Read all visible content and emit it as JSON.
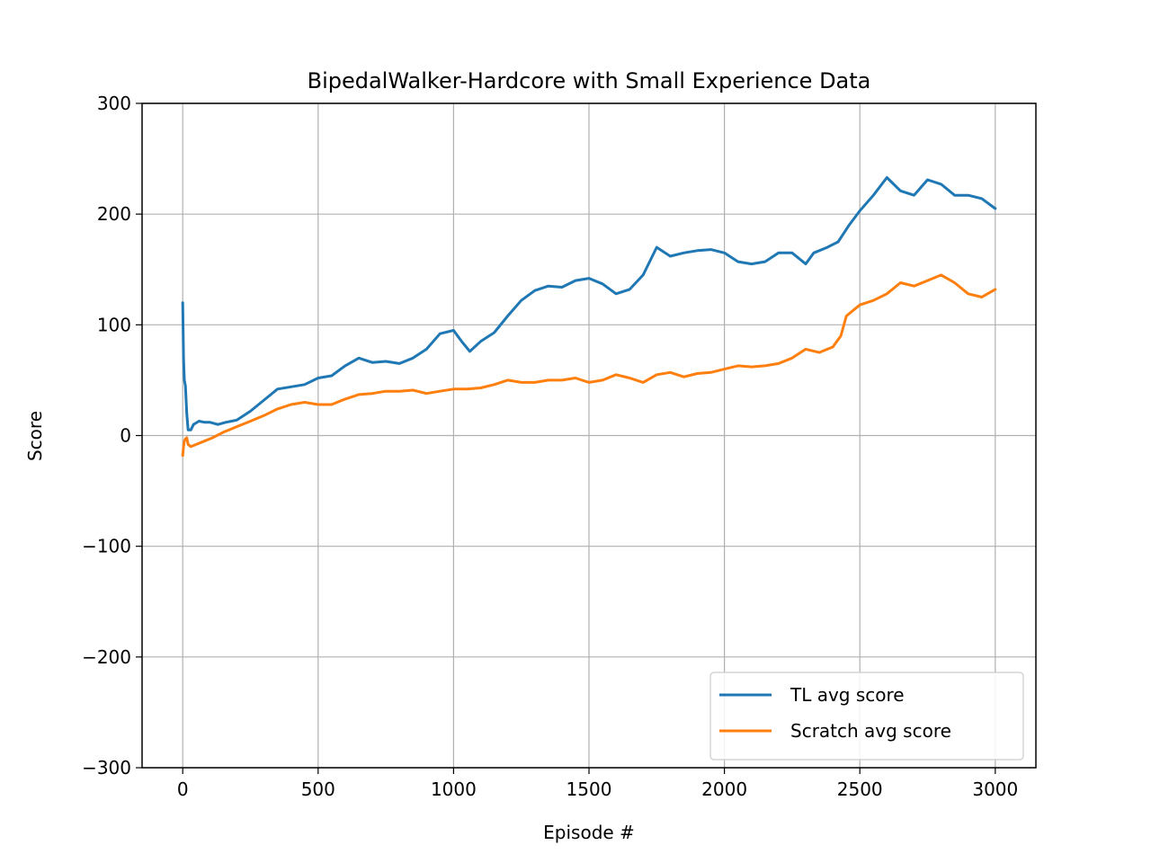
{
  "chart_data": {
    "type": "line",
    "title": "BipedalWalker-Hardcore with Small Experience Data",
    "xlabel": "Episode #",
    "ylabel": "Score",
    "xlim": [
      -150,
      3150
    ],
    "ylim": [
      -300,
      300
    ],
    "xticks": [
      0,
      500,
      1000,
      1500,
      2000,
      2500,
      3000
    ],
    "yticks": [
      -300,
      -200,
      -100,
      0,
      100,
      200,
      300
    ],
    "xtick_labels": [
      "0",
      "500",
      "1000",
      "1500",
      "2000",
      "2500",
      "3000"
    ],
    "ytick_labels": [
      "−300",
      "−200",
      "−100",
      "0",
      "100",
      "200",
      "300"
    ],
    "grid": true,
    "legend_position": "lower-right",
    "series": [
      {
        "name": "TL avg score",
        "color": "#1f77b4",
        "x": [
          0,
          3,
          6,
          10,
          15,
          20,
          30,
          40,
          60,
          80,
          100,
          130,
          160,
          200,
          250,
          300,
          350,
          400,
          450,
          500,
          550,
          600,
          650,
          700,
          750,
          800,
          850,
          900,
          950,
          1000,
          1030,
          1060,
          1100,
          1150,
          1200,
          1250,
          1300,
          1350,
          1400,
          1450,
          1500,
          1550,
          1600,
          1650,
          1700,
          1750,
          1800,
          1850,
          1900,
          1950,
          2000,
          2050,
          2100,
          2150,
          2200,
          2250,
          2300,
          2330,
          2380,
          2420,
          2460,
          2500,
          2550,
          2600,
          2650,
          2700,
          2750,
          2800,
          2850,
          2900,
          2950,
          3000
        ],
        "y": [
          120,
          70,
          50,
          45,
          20,
          5,
          5,
          10,
          13,
          12,
          12,
          10,
          12,
          14,
          22,
          32,
          42,
          44,
          46,
          52,
          54,
          63,
          70,
          66,
          67,
          65,
          70,
          78,
          92,
          95,
          85,
          76,
          85,
          93,
          108,
          122,
          131,
          135,
          134,
          140,
          142,
          137,
          128,
          132,
          145,
          170,
          162,
          165,
          167,
          168,
          165,
          157,
          155,
          157,
          165,
          165,
          155,
          165,
          170,
          175,
          190,
          203,
          217,
          233,
          221,
          217,
          231,
          227,
          217,
          217,
          214,
          205
        ]
      },
      {
        "name": "Scratch avg score",
        "color": "#ff7f0e",
        "x": [
          0,
          3,
          6,
          10,
          15,
          20,
          30,
          50,
          80,
          110,
          150,
          200,
          250,
          300,
          350,
          400,
          450,
          500,
          550,
          600,
          650,
          700,
          750,
          800,
          850,
          900,
          950,
          1000,
          1050,
          1100,
          1150,
          1200,
          1250,
          1300,
          1350,
          1400,
          1450,
          1500,
          1550,
          1600,
          1650,
          1700,
          1750,
          1800,
          1850,
          1900,
          1950,
          2000,
          2050,
          2100,
          2150,
          2200,
          2250,
          2300,
          2350,
          2400,
          2430,
          2450,
          2500,
          2550,
          2600,
          2650,
          2700,
          2750,
          2800,
          2850,
          2900,
          2950,
          3000
        ],
        "y": [
          -18,
          -10,
          -5,
          -3,
          -2,
          -8,
          -10,
          -8,
          -5,
          -2,
          3,
          8,
          13,
          18,
          24,
          28,
          30,
          28,
          28,
          33,
          37,
          38,
          40,
          40,
          41,
          38,
          40,
          42,
          42,
          43,
          46,
          50,
          48,
          48,
          50,
          50,
          52,
          48,
          50,
          55,
          52,
          48,
          55,
          57,
          53,
          56,
          57,
          60,
          63,
          62,
          63,
          65,
          70,
          78,
          75,
          80,
          90,
          108,
          118,
          122,
          128,
          138,
          135,
          140,
          145,
          138,
          128,
          125,
          132
        ]
      }
    ]
  }
}
